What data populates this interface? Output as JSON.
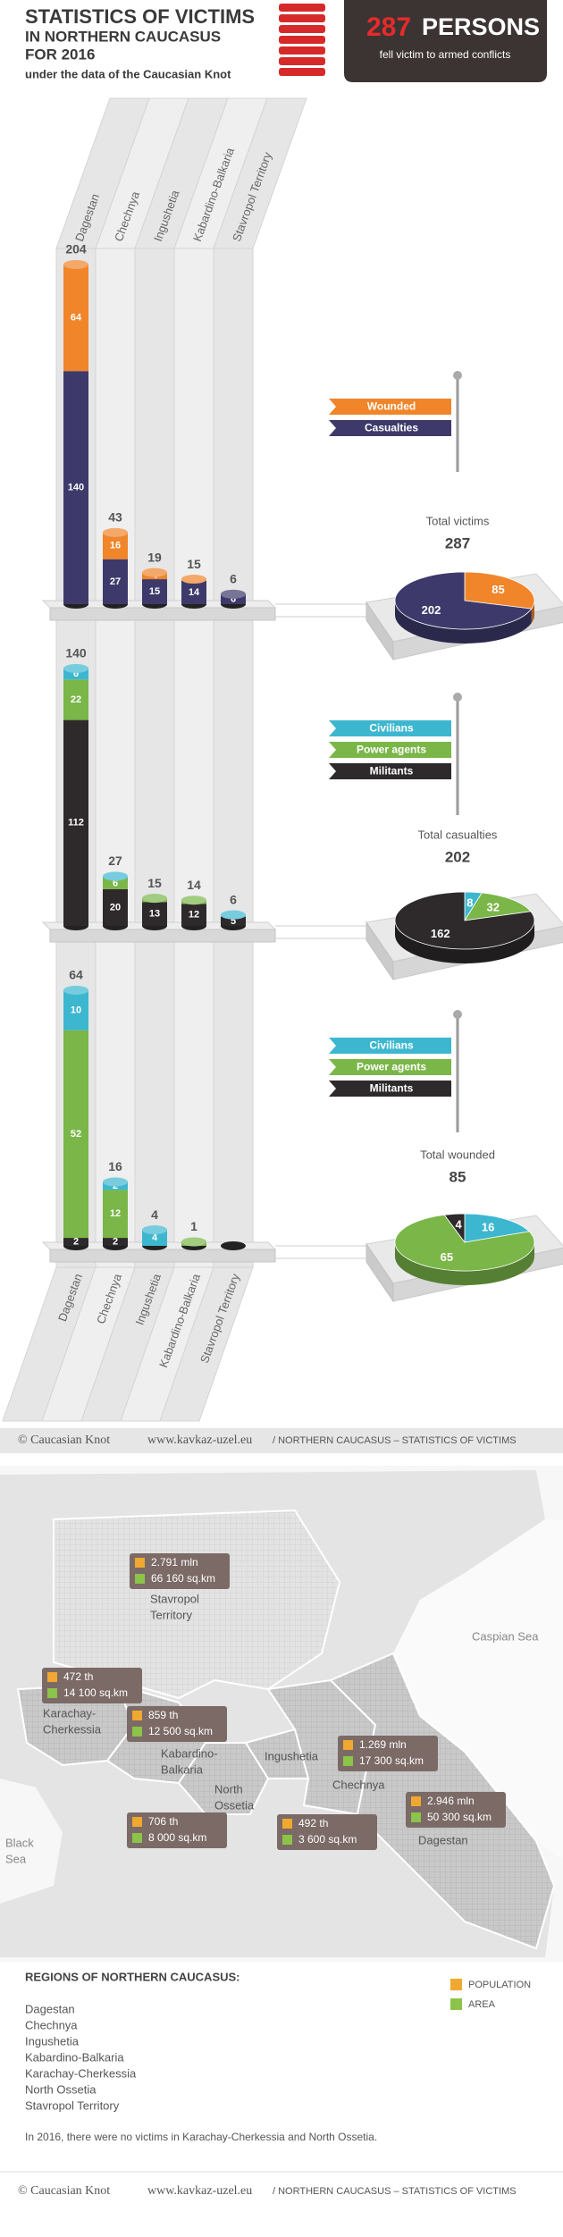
{
  "header": {
    "title": "STATISTICS OF VICTIMS",
    "line2": "IN NORTHERN CAUCASUS",
    "line3": "FOR 2016",
    "subtitle": "under the data of the Caucasian Knot",
    "victims": 287,
    "unit": "PERSONS",
    "caption": "fell victim to armed conflicts"
  },
  "chart_data": [
    {
      "type": "bar",
      "stacked": true,
      "categories": [
        "Dagestan",
        "Chechnya",
        "Ingushetia",
        "Kabardino-Balkaria",
        "Stavropol Territory"
      ],
      "series": [
        {
          "name": "Casualties",
          "color": "#3d3a6b",
          "values": [
            140,
            27,
            15,
            14,
            6
          ]
        },
        {
          "name": "Wounded",
          "color": "#f0852a",
          "values": [
            64,
            16,
            4,
            1,
            null
          ]
        }
      ],
      "totals": [
        204,
        43,
        19,
        15,
        6
      ]
    },
    {
      "type": "pie",
      "title": "Total victims",
      "total": 287,
      "values": [
        202,
        85
      ],
      "colors": [
        "#3d3a6b",
        "#f0852a"
      ]
    },
    {
      "type": "bar",
      "stacked": true,
      "series": [
        {
          "name": "Militants",
          "color": "#2e2a2b",
          "values": [
            112,
            20,
            13,
            12,
            5
          ]
        },
        {
          "name": "Power agents",
          "color": "#7ab648",
          "values": [
            22,
            6,
            2,
            2,
            null
          ]
        },
        {
          "name": "Civilians",
          "color": "#3db7d0",
          "values": [
            6,
            1,
            null,
            null,
            1
          ]
        }
      ],
      "totals": [
        140,
        27,
        15,
        14,
        6
      ]
    },
    {
      "type": "pie",
      "title": "Total casualties",
      "total": 202,
      "values": [
        162,
        32,
        8
      ],
      "colors": [
        "#2e2a2b",
        "#7ab648",
        "#3db7d0"
      ]
    },
    {
      "type": "bar",
      "stacked": true,
      "categories": [
        "Dagestan",
        "Chechnya",
        "Ingushetia",
        "Kabardino-Balkaria",
        "Stavropol Territory"
      ],
      "series": [
        {
          "name": "Militants",
          "color": "#2e2a2b",
          "values": [
            2,
            2,
            null,
            null,
            null
          ]
        },
        {
          "name": "Power agents",
          "color": "#7ab648",
          "values": [
            52,
            12,
            null,
            1,
            null
          ]
        },
        {
          "name": "Civilians",
          "color": "#3db7d0",
          "values": [
            10,
            2,
            4,
            null,
            null
          ]
        }
      ],
      "totals": [
        64,
        16,
        4,
        1,
        null
      ]
    },
    {
      "type": "pie",
      "title": "Total wounded",
      "total": 85,
      "values": [
        4,
        65,
        16
      ],
      "colors": [
        "#2e2a2b",
        "#7ab648",
        "#3db7d0"
      ]
    }
  ],
  "footer": {
    "copyright": "© Caucasian Knot",
    "site": "www.kavkaz-uzel.eu",
    "section": "/ NORTHERN CAUCASUS – STATISTICS OF VICTIMS"
  },
  "map": {
    "caspian": "Caspian Sea",
    "black_sea": [
      "Black",
      "Sea"
    ],
    "regions": [
      {
        "name": [
          "Stavropol",
          "Territory"
        ],
        "population": "2.791 mln",
        "area": "66 160 sq.km"
      },
      {
        "name": [
          "Karachay-",
          "Cherkessia"
        ],
        "population": "472 th",
        "area": "14 100 sq.km"
      },
      {
        "name": [
          "Kabardino-",
          "Balkaria"
        ],
        "population": "859 th",
        "area": "12 500 sq.km"
      },
      {
        "name": [
          "North",
          "Ossetia"
        ],
        "population": "706 th",
        "area": "8 000 sq.km"
      },
      {
        "name": [
          "Ingushetia"
        ],
        "population": "492 th",
        "area": "3 600 sq.km"
      },
      {
        "name": [
          "Chechnya"
        ],
        "population": "1.269 mln",
        "area": "17 300 sq.km"
      },
      {
        "name": [
          "Dagestan"
        ],
        "population": "2.946 mln",
        "area": "50 300 sq.km"
      }
    ],
    "legend": {
      "population": "POPULATION",
      "area": "AREA"
    }
  },
  "regions_list": {
    "title": "REGIONS OF NORTHERN CAUCASUS:",
    "items": [
      "Dagestan",
      "Chechnya",
      "Ingushetia",
      "Kabardino-Balkaria",
      "Karachay-Cherkessia",
      "North Ossetia",
      "Stavropol Territory"
    ]
  },
  "note": "In 2016, there were no victims in Karachay-Cherkessia and North Ossetia."
}
